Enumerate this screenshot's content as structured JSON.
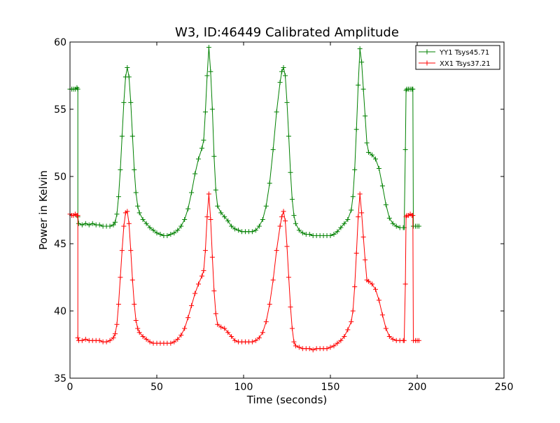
{
  "chart_data": {
    "type": "line",
    "title": "W3, ID:46449 Calibrated Amplitude",
    "xlabel": "Time (seconds)",
    "ylabel": "Power in Kelvin",
    "xlim": [
      0,
      250
    ],
    "ylim": [
      35,
      60
    ],
    "xticks": [
      0,
      50,
      100,
      150,
      200,
      250
    ],
    "yticks": [
      35,
      40,
      45,
      50,
      55,
      60
    ],
    "grid": false,
    "legend_position": "top-right",
    "series": [
      {
        "name": "YY1 Tsys45.71",
        "color": "#008000",
        "marker": "+",
        "points": [
          [
            0,
            56.5
          ],
          [
            1,
            56.5
          ],
          [
            2,
            56.5
          ],
          [
            3,
            56.5
          ],
          [
            4,
            56.6
          ],
          [
            4.5,
            56.5
          ],
          [
            4.5,
            47
          ],
          [
            5,
            46.5
          ],
          [
            7,
            46.4
          ],
          [
            9,
            46.5
          ],
          [
            11,
            46.4
          ],
          [
            13,
            46.5
          ],
          [
            15,
            46.4
          ],
          [
            17,
            46.4
          ],
          [
            19,
            46.3
          ],
          [
            21,
            46.3
          ],
          [
            23,
            46.3
          ],
          [
            25,
            46.4
          ],
          [
            26,
            46.6
          ],
          [
            27,
            47.2
          ],
          [
            28,
            48.5
          ],
          [
            29,
            50.5
          ],
          [
            30,
            53
          ],
          [
            31,
            55.5
          ],
          [
            32,
            57.4
          ],
          [
            33,
            58.1
          ],
          [
            34,
            57.4
          ],
          [
            35,
            55.5
          ],
          [
            36,
            53
          ],
          [
            37,
            50.5
          ],
          [
            38,
            48.8
          ],
          [
            39,
            47.8
          ],
          [
            40,
            47.3
          ],
          [
            42,
            46.8
          ],
          [
            44,
            46.5
          ],
          [
            46,
            46.2
          ],
          [
            48,
            46
          ],
          [
            50,
            45.8
          ],
          [
            52,
            45.7
          ],
          [
            54,
            45.6
          ],
          [
            56,
            45.6
          ],
          [
            58,
            45.7
          ],
          [
            60,
            45.8
          ],
          [
            62,
            46
          ],
          [
            64,
            46.3
          ],
          [
            66,
            46.8
          ],
          [
            68,
            47.6
          ],
          [
            70,
            48.8
          ],
          [
            72,
            50.2
          ],
          [
            74,
            51.3
          ],
          [
            76,
            52.1
          ],
          [
            77,
            52.7
          ],
          [
            78,
            54.8
          ],
          [
            79,
            57.5
          ],
          [
            80,
            59.6
          ],
          [
            81,
            57.8
          ],
          [
            82,
            55
          ],
          [
            83,
            51.5
          ],
          [
            84,
            49
          ],
          [
            85,
            47.8
          ],
          [
            87,
            47.3
          ],
          [
            89,
            47
          ],
          [
            91,
            46.7
          ],
          [
            93,
            46.3
          ],
          [
            95,
            46.1
          ],
          [
            97,
            46
          ],
          [
            99,
            45.9
          ],
          [
            101,
            45.9
          ],
          [
            103,
            45.9
          ],
          [
            105,
            45.9
          ],
          [
            107,
            46
          ],
          [
            109,
            46.3
          ],
          [
            111,
            46.8
          ],
          [
            113,
            47.8
          ],
          [
            115,
            49.5
          ],
          [
            117,
            52
          ],
          [
            119,
            54.8
          ],
          [
            121,
            57
          ],
          [
            122,
            57.8
          ],
          [
            123,
            58.1
          ],
          [
            124,
            57.5
          ],
          [
            125,
            55.5
          ],
          [
            126,
            53
          ],
          [
            127,
            50.3
          ],
          [
            128,
            48.3
          ],
          [
            129,
            47.1
          ],
          [
            130,
            46.5
          ],
          [
            132,
            46
          ],
          [
            134,
            45.8
          ],
          [
            136,
            45.7
          ],
          [
            138,
            45.7
          ],
          [
            140,
            45.6
          ],
          [
            142,
            45.6
          ],
          [
            144,
            45.6
          ],
          [
            146,
            45.6
          ],
          [
            148,
            45.6
          ],
          [
            150,
            45.6
          ],
          [
            152,
            45.7
          ],
          [
            154,
            45.9
          ],
          [
            156,
            46.2
          ],
          [
            158,
            46.5
          ],
          [
            160,
            46.8
          ],
          [
            162,
            47.5
          ],
          [
            163,
            48.5
          ],
          [
            164,
            50.5
          ],
          [
            165,
            53.5
          ],
          [
            166,
            56.8
          ],
          [
            167,
            59.5
          ],
          [
            168,
            58.5
          ],
          [
            169,
            56.5
          ],
          [
            170,
            54.5
          ],
          [
            171,
            52.5
          ],
          [
            172,
            51.8
          ],
          [
            174,
            51.6
          ],
          [
            176,
            51.3
          ],
          [
            178,
            50.6
          ],
          [
            180,
            49.3
          ],
          [
            182,
            47.9
          ],
          [
            184,
            46.9
          ],
          [
            186,
            46.5
          ],
          [
            188,
            46.3
          ],
          [
            190,
            46.2
          ],
          [
            192,
            46.2
          ],
          [
            192.5,
            46.2
          ],
          [
            193.2,
            52
          ],
          [
            193.6,
            56.4
          ],
          [
            194,
            56.5
          ],
          [
            195,
            56.5
          ],
          [
            196,
            56.5
          ],
          [
            197,
            56.5
          ],
          [
            197.5,
            56.5
          ],
          [
            197.8,
            46.3
          ],
          [
            199,
            46.3
          ],
          [
            200,
            46.3
          ],
          [
            201,
            46.3
          ]
        ]
      },
      {
        "name": "XX1 Tsys37.21",
        "color": "#ff0000",
        "marker": "+",
        "points": [
          [
            0,
            47.2
          ],
          [
            1,
            47.1
          ],
          [
            2,
            47.1
          ],
          [
            3,
            47.2
          ],
          [
            4,
            47.1
          ],
          [
            4.5,
            47.1
          ],
          [
            4.5,
            38
          ],
          [
            5,
            37.8
          ],
          [
            7,
            37.8
          ],
          [
            9,
            37.9
          ],
          [
            11,
            37.8
          ],
          [
            13,
            37.8
          ],
          [
            15,
            37.8
          ],
          [
            17,
            37.8
          ],
          [
            19,
            37.7
          ],
          [
            21,
            37.7
          ],
          [
            23,
            37.8
          ],
          [
            25,
            38
          ],
          [
            26,
            38.3
          ],
          [
            27,
            39
          ],
          [
            28,
            40.5
          ],
          [
            29,
            42.5
          ],
          [
            30,
            44.5
          ],
          [
            31,
            46.3
          ],
          [
            32,
            47.3
          ],
          [
            33,
            47.4
          ],
          [
            34,
            46.5
          ],
          [
            35,
            44.5
          ],
          [
            36,
            42.3
          ],
          [
            37,
            40.5
          ],
          [
            38,
            39.3
          ],
          [
            39,
            38.7
          ],
          [
            40,
            38.4
          ],
          [
            42,
            38.1
          ],
          [
            44,
            37.9
          ],
          [
            46,
            37.7
          ],
          [
            48,
            37.6
          ],
          [
            50,
            37.6
          ],
          [
            52,
            37.6
          ],
          [
            54,
            37.6
          ],
          [
            56,
            37.6
          ],
          [
            58,
            37.6
          ],
          [
            60,
            37.7
          ],
          [
            62,
            37.9
          ],
          [
            64,
            38.2
          ],
          [
            66,
            38.7
          ],
          [
            68,
            39.5
          ],
          [
            70,
            40.4
          ],
          [
            72,
            41.3
          ],
          [
            74,
            42
          ],
          [
            76,
            42.6
          ],
          [
            77,
            43
          ],
          [
            78,
            44.5
          ],
          [
            79,
            47
          ],
          [
            80,
            48.7
          ],
          [
            81,
            46.8
          ],
          [
            82,
            44
          ],
          [
            83,
            41.5
          ],
          [
            84,
            39.8
          ],
          [
            85,
            39
          ],
          [
            87,
            38.8
          ],
          [
            89,
            38.7
          ],
          [
            91,
            38.4
          ],
          [
            93,
            38.1
          ],
          [
            95,
            37.8
          ],
          [
            97,
            37.7
          ],
          [
            99,
            37.7
          ],
          [
            101,
            37.7
          ],
          [
            103,
            37.7
          ],
          [
            105,
            37.7
          ],
          [
            107,
            37.8
          ],
          [
            109,
            38
          ],
          [
            111,
            38.4
          ],
          [
            113,
            39.2
          ],
          [
            115,
            40.5
          ],
          [
            117,
            42.3
          ],
          [
            119,
            44.5
          ],
          [
            121,
            46.3
          ],
          [
            122,
            47
          ],
          [
            123,
            47.4
          ],
          [
            124,
            46.7
          ],
          [
            125,
            44.8
          ],
          [
            126,
            42.5
          ],
          [
            127,
            40.3
          ],
          [
            128,
            38.7
          ],
          [
            129,
            37.7
          ],
          [
            130,
            37.4
          ],
          [
            132,
            37.3
          ],
          [
            134,
            37.2
          ],
          [
            136,
            37.2
          ],
          [
            138,
            37.2
          ],
          [
            140,
            37.1
          ],
          [
            142,
            37.2
          ],
          [
            144,
            37.2
          ],
          [
            146,
            37.2
          ],
          [
            148,
            37.2
          ],
          [
            150,
            37.3
          ],
          [
            152,
            37.4
          ],
          [
            154,
            37.6
          ],
          [
            156,
            37.8
          ],
          [
            158,
            38.1
          ],
          [
            160,
            38.6
          ],
          [
            162,
            39.2
          ],
          [
            163,
            40
          ],
          [
            164,
            41.8
          ],
          [
            165,
            44.3
          ],
          [
            166,
            47
          ],
          [
            167,
            48.7
          ],
          [
            168,
            47.3
          ],
          [
            169,
            45.5
          ],
          [
            170,
            43.8
          ],
          [
            171,
            42.3
          ],
          [
            172,
            42.2
          ],
          [
            174,
            42
          ],
          [
            176,
            41.6
          ],
          [
            178,
            40.8
          ],
          [
            180,
            39.7
          ],
          [
            182,
            38.7
          ],
          [
            184,
            38.1
          ],
          [
            186,
            37.9
          ],
          [
            188,
            37.8
          ],
          [
            190,
            37.8
          ],
          [
            192,
            37.8
          ],
          [
            192.5,
            37.8
          ],
          [
            193.2,
            42
          ],
          [
            193.6,
            47
          ],
          [
            194,
            47.1
          ],
          [
            195,
            47.1
          ],
          [
            196,
            47.2
          ],
          [
            197,
            47.1
          ],
          [
            197.5,
            47.1
          ],
          [
            197.8,
            37.8
          ],
          [
            199,
            37.8
          ],
          [
            200,
            37.8
          ],
          [
            201,
            37.8
          ]
        ]
      }
    ]
  }
}
